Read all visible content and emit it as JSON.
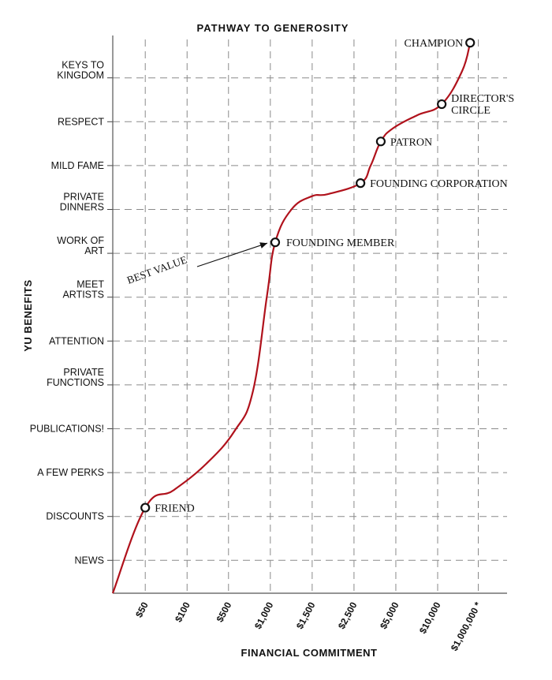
{
  "chart_data": {
    "type": "line",
    "title": "PATHWAY TO GENEROSITY",
    "xlabel": "FINANCIAL COMMITMENT",
    "ylabel": "YU BENEFITS",
    "x_ticks": [
      "$50",
      "$100",
      "$500",
      "$1,000",
      "$1,500",
      "$2,500",
      "$5,000",
      "$10,000",
      "$1,000,000 *"
    ],
    "y_ticks": [
      [
        "NEWS"
      ],
      [
        "DISCOUNTS"
      ],
      [
        "A FEW PERKS"
      ],
      [
        "PUBLICATIONS!"
      ],
      [
        "PRIVATE",
        "FUNCTIONS"
      ],
      [
        "ATTENTION"
      ],
      [
        "MEET",
        "ARTISTS"
      ],
      [
        "WORK OF",
        "ART"
      ],
      [
        "PRIVATE",
        "DINNERS"
      ],
      [
        "MILD FAME"
      ],
      [
        "RESPECT"
      ],
      [
        "KEYS TO",
        "KINGDOM"
      ]
    ],
    "x_range": [
      0,
      9.5
    ],
    "y_range": [
      0,
      12.7
    ],
    "grid": true,
    "series": [
      {
        "name": "Pathway",
        "color": "#b0121c",
        "curve": [
          [
            0,
            0
          ],
          [
            0.8,
            1.95
          ],
          [
            1.5,
            2.35
          ],
          [
            2.3,
            2.95
          ],
          [
            3.0,
            3.7
          ],
          [
            3.45,
            4.6
          ],
          [
            3.8,
            6.8
          ],
          [
            4.0,
            8.0
          ],
          [
            4.4,
            8.75
          ],
          [
            4.9,
            9.05
          ],
          [
            5.3,
            9.1
          ],
          [
            6.1,
            9.35
          ],
          [
            6.35,
            9.75
          ],
          [
            6.6,
            10.3
          ],
          [
            6.9,
            10.6
          ],
          [
            7.5,
            10.9
          ],
          [
            8.1,
            11.15
          ],
          [
            8.6,
            11.9
          ],
          [
            8.8,
            12.55
          ]
        ],
        "points": [
          {
            "label": "FRIEND",
            "x": 0.8,
            "y": 1.95
          },
          {
            "label": "FOUNDING MEMBER",
            "x": 4.0,
            "y": 8.0
          },
          {
            "label": "FOUNDING CORPORATION",
            "x": 6.1,
            "y": 9.35
          },
          {
            "label": "PATRON",
            "x": 6.6,
            "y": 10.3
          },
          {
            "label": "DIRECTOR'S CIRCLE",
            "x": 8.1,
            "y": 11.15
          },
          {
            "label": "CHAMPION",
            "x": 8.8,
            "y": 12.55
          }
        ]
      }
    ],
    "annotations": [
      {
        "text": "BEST VALUE",
        "arrow_to": "FOUNDING MEMBER"
      }
    ]
  }
}
